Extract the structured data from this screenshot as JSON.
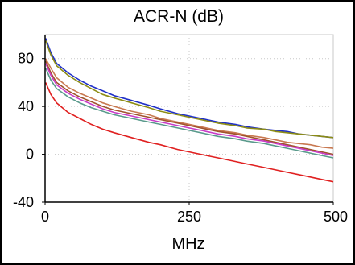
{
  "chart_data": {
    "type": "line",
    "title": "ACR-N (dB)",
    "xlabel": "MHz",
    "ylabel": "",
    "xlim": [
      0,
      500
    ],
    "ylim": [
      -40,
      100
    ],
    "xticks": [
      0,
      250,
      500
    ],
    "xtick_labels": [
      "0",
      "250",
      "500"
    ],
    "yticks": [
      -40,
      0,
      40,
      80
    ],
    "ytick_labels": [
      "-40",
      "0",
      "40",
      "80"
    ],
    "grid": true,
    "legend": "none",
    "series": [
      {
        "color": "#2030c8",
        "x": [
          1,
          10,
          20,
          40,
          60,
          80,
          100,
          120,
          150,
          180,
          200,
          230,
          250,
          280,
          300,
          330,
          350,
          380,
          400,
          420,
          440,
          460,
          480,
          500
        ],
        "y": [
          97,
          85,
          76,
          68,
          62,
          57,
          53,
          49,
          45,
          41,
          38,
          34,
          32,
          29,
          27,
          25,
          23,
          21,
          20,
          19,
          17,
          16,
          15,
          14
        ]
      },
      {
        "color": "#8c8c14",
        "x": [
          1,
          10,
          20,
          40,
          60,
          80,
          100,
          120,
          150,
          180,
          200,
          230,
          250,
          280,
          300,
          330,
          350,
          380,
          400,
          420,
          440,
          460,
          480,
          500
        ],
        "y": [
          95,
          83,
          74,
          66,
          60,
          55,
          50,
          47,
          43,
          39,
          36,
          33,
          31,
          28,
          26,
          24,
          22,
          21,
          19,
          18,
          17,
          16,
          15,
          14
        ]
      },
      {
        "color": "#c87850",
        "x": [
          1,
          10,
          20,
          40,
          60,
          80,
          100,
          120,
          150,
          180,
          200,
          230,
          250,
          280,
          300,
          330,
          350,
          380,
          400,
          420,
          440,
          460,
          480,
          500
        ],
        "y": [
          80,
          72,
          64,
          56,
          51,
          47,
          43,
          40,
          36,
          33,
          30,
          27,
          25,
          22,
          20,
          18,
          16,
          14,
          12,
          10,
          9,
          8,
          6,
          5
        ]
      },
      {
        "color": "#a0522d",
        "x": [
          1,
          10,
          20,
          40,
          60,
          80,
          100,
          120,
          150,
          180,
          200,
          230,
          250,
          280,
          300,
          330,
          350,
          380,
          400,
          420,
          440,
          460,
          480,
          500
        ],
        "y": [
          78,
          68,
          60,
          53,
          48,
          44,
          40,
          37,
          34,
          31,
          29,
          26,
          24,
          21,
          19,
          17,
          15,
          12,
          10,
          8,
          6,
          4,
          2,
          0
        ]
      },
      {
        "color": "#5a9a8c",
        "x": [
          1,
          10,
          20,
          40,
          60,
          80,
          100,
          120,
          150,
          180,
          200,
          230,
          250,
          280,
          300,
          330,
          350,
          380,
          400,
          420,
          440,
          460,
          480,
          500
        ],
        "y": [
          72,
          62,
          55,
          48,
          43,
          39,
          36,
          33,
          30,
          27,
          25,
          22,
          20,
          17,
          15,
          13,
          11,
          9,
          7,
          5,
          3,
          1,
          -1,
          -3
        ]
      },
      {
        "color": "#c83cc8",
        "x": [
          1,
          10,
          20,
          40,
          60,
          80,
          100,
          120,
          150,
          180,
          200,
          230,
          250,
          280,
          300,
          330,
          350,
          380,
          400,
          420,
          440,
          460,
          480,
          500
        ],
        "y": [
          76,
          66,
          58,
          51,
          46,
          42,
          38,
          35,
          32,
          29,
          27,
          24,
          22,
          19,
          17,
          15,
          13,
          11,
          9,
          7,
          5,
          3,
          1,
          -1
        ]
      },
      {
        "color": "#e02020",
        "x": [
          1,
          10,
          20,
          40,
          60,
          80,
          100,
          120,
          150,
          180,
          200,
          230,
          250,
          280,
          300,
          330,
          350,
          380,
          400,
          420,
          440,
          460,
          480,
          500
        ],
        "y": [
          60,
          50,
          43,
          35,
          30,
          25,
          21,
          18,
          14,
          10,
          8,
          4,
          2,
          -1,
          -3,
          -6,
          -8,
          -11,
          -13,
          -15,
          -17,
          -19,
          -21,
          -23
        ]
      }
    ]
  }
}
